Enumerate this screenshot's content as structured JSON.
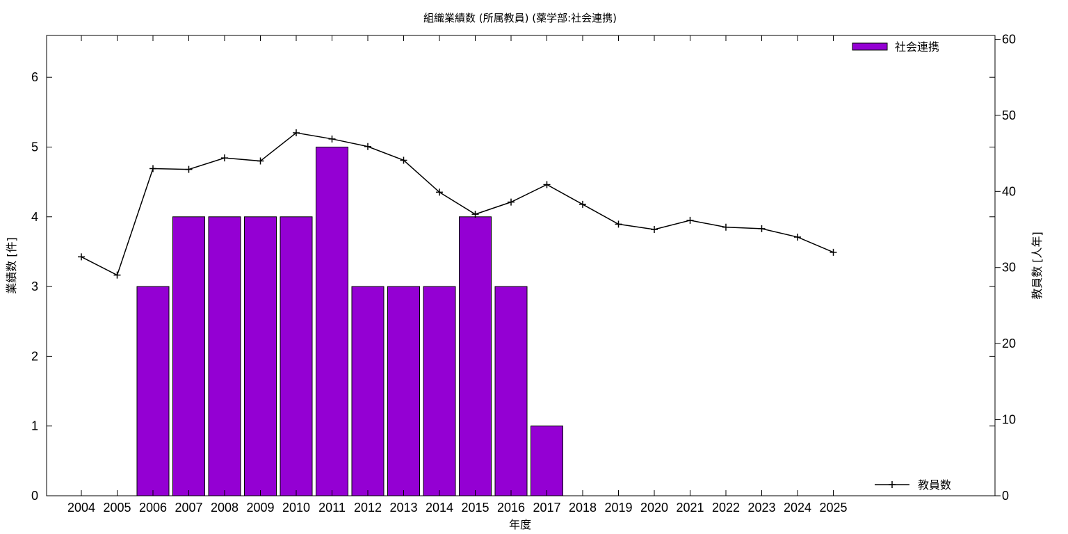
{
  "chart_data": {
    "type": "bar",
    "title": "組織業績数 (所属教員) (薬学部:社会連携)",
    "xlabel": "年度",
    "ylabel": "業績数 [件]",
    "y2label": "教員数 [人年]",
    "ylim": [
      0,
      6.6
    ],
    "y2lim": [
      0,
      60.5
    ],
    "yticks": [
      0,
      1,
      2,
      3,
      4,
      5,
      6
    ],
    "y2ticks": [
      0,
      10,
      20,
      30,
      40,
      50,
      60
    ],
    "categories": [
      "2004",
      "2005",
      "2006",
      "2007",
      "2008",
      "2009",
      "2010",
      "2011",
      "2012",
      "2013",
      "2014",
      "2015",
      "2016",
      "2017",
      "2018",
      "2019",
      "2020",
      "2021",
      "2022",
      "2023",
      "2024",
      "2025"
    ],
    "series": [
      {
        "name": "社会連携",
        "kind": "bar",
        "axis": "left",
        "color": "#9400d3",
        "values": [
          0,
          0,
          3,
          4,
          4,
          4,
          4,
          5,
          3,
          3,
          3,
          4,
          3,
          1,
          0,
          0,
          0,
          0,
          0,
          0,
          0,
          0
        ]
      },
      {
        "name": "教員数",
        "kind": "line",
        "axis": "right",
        "color": "#000000",
        "values": [
          31.4,
          29.0,
          43.0,
          42.9,
          44.4,
          44.0,
          47.7,
          46.9,
          45.9,
          44.1,
          39.9,
          37.0,
          38.6,
          40.9,
          38.3,
          35.7,
          35.0,
          36.2,
          35.3,
          35.1,
          34.0,
          32.0
        ]
      }
    ],
    "legend_placement": [
      "top-right",
      "bottom-right"
    ],
    "grid": false
  }
}
